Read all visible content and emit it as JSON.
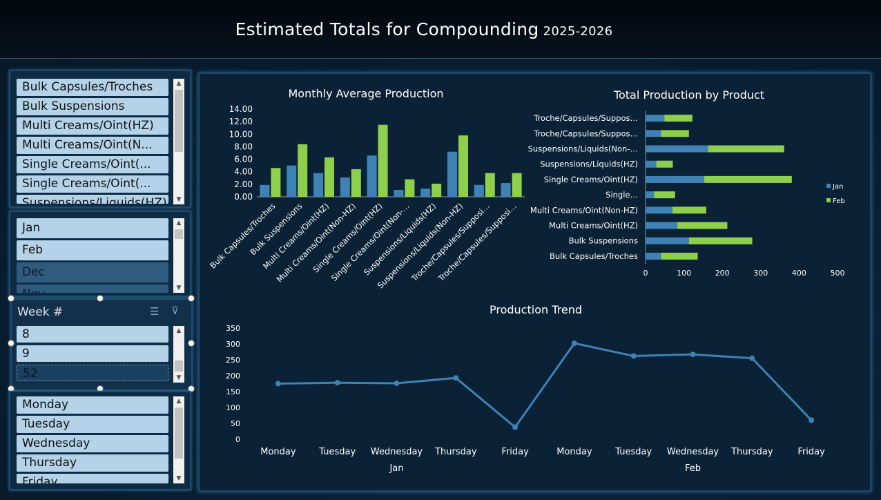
{
  "title": {
    "main": "Estimated Totals for Compounding",
    "period": "2025-2026"
  },
  "slicers": {
    "product": {
      "items": [
        "Bulk Capsules/Troches",
        "Bulk Suspensions",
        "Multi Creams/Oint(HZ)",
        "Multi Creams/Oint(N...",
        "Single Creams/Oint(...",
        "Single Creams/Oint(...",
        "Suspensions/Liquids(HZ)"
      ]
    },
    "month": {
      "items": [
        "Jan",
        "Feb",
        "Dec",
        "Nov"
      ]
    },
    "week": {
      "header": "Week #",
      "items": [
        "8",
        "9",
        "52"
      ]
    },
    "day": {
      "items": [
        "Monday",
        "Tuesday",
        "Wednesday",
        "Thursday",
        "Friday"
      ]
    }
  },
  "chart_data": [
    {
      "type": "bar",
      "title": "Monthly Average Production",
      "categories": [
        "Bulk Capsules/Troches",
        "Bulk Suspensions",
        "Multi Creams/Oint(HZ)",
        "Multi Creams/Oint(Non-HZ)",
        "Single Creams/Oint(HZ)",
        "Single Creams/Oint(Non-…",
        "Suspensions/Liquids(HZ)",
        "Suspensions/Liquids(Non-HZ)",
        "Troche/Capsules/Supposi…",
        "Troche/Capsules/Supposi…"
      ],
      "series": [
        {
          "values": [
            1.9,
            5.0,
            3.8,
            3.1,
            6.6,
            1.1,
            1.3,
            7.2,
            1.9,
            2.2
          ],
          "color": "#3f82b5"
        },
        {
          "values": [
            4.6,
            8.4,
            6.3,
            4.4,
            11.5,
            2.8,
            2.1,
            9.8,
            3.8,
            3.8
          ],
          "color": "#8ecf4c"
        }
      ],
      "ylim": [
        0,
        14
      ],
      "yticks": [
        "0.00",
        "2.00",
        "4.00",
        "6.00",
        "8.00",
        "10.00",
        "12.00",
        "14.00"
      ]
    },
    {
      "type": "bar",
      "orientation": "horizontal",
      "stacked": true,
      "title": "Total Production by Product",
      "categories": [
        "Bulk Capsules/Troches",
        "Bulk Suspensions",
        "Multi Creams/Oint(HZ)",
        "Multi Creams/Oint(Non-HZ)",
        "Single…",
        "Single Creams/Oint(HZ)",
        "Suspensions/Liquids(HZ)",
        "Suspensions/Liquids(Non-…",
        "Troche/Capsules/Suppos…",
        "Troche/Capsules/Suppos…"
      ],
      "series": [
        {
          "name": "Jan",
          "values": [
            40,
            113,
            83,
            70,
            22,
            153,
            28,
            163,
            40,
            49
          ],
          "color": "#3f82b5"
        },
        {
          "name": "Feb",
          "values": [
            96,
            165,
            130,
            88,
            55,
            228,
            43,
            198,
            73,
            73
          ],
          "color": "#8ecf4c"
        }
      ],
      "xlim": [
        0,
        500
      ],
      "xticks": [
        "0",
        "100",
        "200",
        "300",
        "400",
        "500"
      ],
      "legend": "right"
    },
    {
      "type": "line",
      "title": "Production Trend",
      "x": [
        "Monday",
        "Tuesday",
        "Wednesday",
        "Thursday",
        "Friday",
        "Monday",
        "Tuesday",
        "Wednesday",
        "Thursday",
        "Friday"
      ],
      "groups": [
        "Jan",
        "Feb"
      ],
      "values": [
        175,
        178,
        176,
        193,
        38,
        302,
        262,
        267,
        255,
        60
      ],
      "ylim": [
        0,
        350
      ],
      "yticks": [
        "0",
        "50",
        "100",
        "150",
        "200",
        "250",
        "300",
        "350"
      ],
      "color": "#3f82b5"
    }
  ]
}
